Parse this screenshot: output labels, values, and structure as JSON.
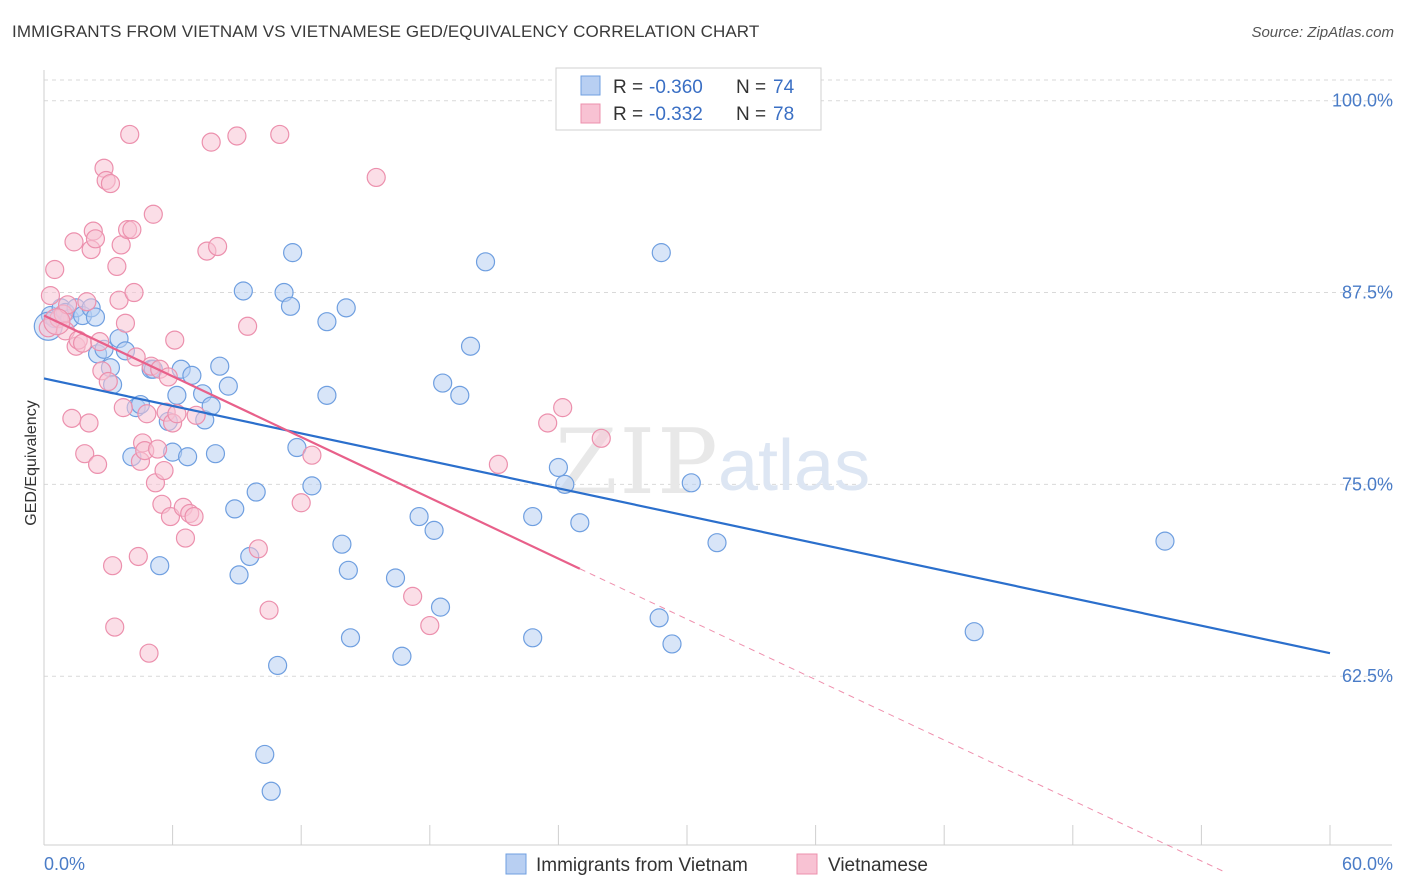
{
  "title": "IMMIGRANTS FROM VIETNAM VS VIETNAMESE GED/EQUIVALENCY CORRELATION CHART",
  "source": "Source: ZipAtlas.com",
  "watermark": {
    "zip": "ZIP",
    "atlas": "atlas"
  },
  "colors": {
    "blue_fill": "#b8cff2",
    "blue_stroke": "#6f9fe0",
    "blue_line": "#2b6fcc",
    "pink_fill": "#f8c2d3",
    "pink_stroke": "#ec90ad",
    "pink_line": "#e8608a",
    "grid": "#d9d9d9",
    "axis_text": "#4a7cc7"
  },
  "chart_data": {
    "type": "scatter",
    "title": "IMMIGRANTS FROM VIETNAM VS VIETNAMESE GED/EQUIVALENCY CORRELATION CHART",
    "xlabel": "",
    "ylabel": "GED/Equivalency",
    "xlim": [
      0,
      60
    ],
    "ylim": [
      51.5,
      102
    ],
    "x_tick_labels": [
      "0.0%",
      "60.0%"
    ],
    "y_ticks": [
      62.5,
      75.0,
      87.5,
      100.0
    ],
    "y_tick_labels": [
      "62.5%",
      "75.0%",
      "87.5%",
      "100.0%"
    ],
    "grid": "horizontal dashed",
    "legend": {
      "placement": "top-center",
      "rows": [
        {
          "r_label": "R = ",
          "r_value": "-0.360",
          "n_label": "N = ",
          "n_value": "74"
        },
        {
          "r_label": "R = ",
          "r_value": "-0.332",
          "n_label": "N = ",
          "n_value": "78"
        }
      ]
    },
    "series": [
      {
        "name": "Immigrants from Vietnam",
        "color": "blue",
        "trend": {
          "x0": 0,
          "y0": 81.9,
          "x1": 60,
          "y1": 64.0,
          "dashed_to": null
        },
        "points": [
          [
            0.3,
            86.0
          ],
          [
            0.5,
            85.8
          ],
          [
            0.8,
            86.5
          ],
          [
            1.0,
            86.2
          ],
          [
            1.2,
            85.8
          ],
          [
            1.5,
            86.5
          ],
          [
            1.8,
            86.0
          ],
          [
            2.2,
            86.5
          ],
          [
            2.4,
            85.9
          ],
          [
            2.5,
            83.5
          ],
          [
            2.8,
            83.8
          ],
          [
            3.1,
            82.6
          ],
          [
            3.2,
            81.5
          ],
          [
            3.5,
            84.5
          ],
          [
            3.8,
            83.7
          ],
          [
            4.1,
            76.8
          ],
          [
            4.3,
            80.0
          ],
          [
            4.5,
            80.2
          ],
          [
            5.0,
            82.5
          ],
          [
            5.1,
            82.5
          ],
          [
            5.4,
            69.7
          ],
          [
            5.8,
            79.1
          ],
          [
            6.0,
            77.1
          ],
          [
            6.2,
            80.8
          ],
          [
            6.4,
            82.5
          ],
          [
            6.7,
            76.8
          ],
          [
            6.9,
            82.1
          ],
          [
            7.4,
            80.9
          ],
          [
            7.5,
            79.2
          ],
          [
            7.8,
            80.1
          ],
          [
            8.0,
            77.0
          ],
          [
            8.2,
            82.7
          ],
          [
            8.6,
            81.4
          ],
          [
            8.9,
            73.4
          ],
          [
            9.1,
            69.1
          ],
          [
            9.3,
            87.6
          ],
          [
            9.6,
            70.3
          ],
          [
            9.9,
            74.5
          ],
          [
            10.3,
            57.4
          ],
          [
            10.6,
            55.0
          ],
          [
            10.9,
            63.2
          ],
          [
            11.2,
            87.5
          ],
          [
            11.5,
            86.6
          ],
          [
            11.6,
            90.1
          ],
          [
            11.8,
            77.4
          ],
          [
            12.5,
            74.9
          ],
          [
            13.2,
            85.6
          ],
          [
            13.2,
            80.8
          ],
          [
            13.9,
            71.1
          ],
          [
            14.1,
            86.5
          ],
          [
            14.2,
            69.4
          ],
          [
            14.3,
            65.0
          ],
          [
            16.4,
            68.9
          ],
          [
            16.7,
            63.8
          ],
          [
            17.5,
            72.9
          ],
          [
            18.2,
            72.0
          ],
          [
            18.5,
            67.0
          ],
          [
            18.6,
            81.6
          ],
          [
            19.4,
            80.8
          ],
          [
            19.9,
            84.0
          ],
          [
            20.6,
            89.5
          ],
          [
            22.8,
            72.9
          ],
          [
            22.8,
            65.0
          ],
          [
            24.0,
            76.1
          ],
          [
            24.3,
            75.0
          ],
          [
            25.0,
            72.5
          ],
          [
            26.3,
            100.5
          ],
          [
            28.7,
            66.3
          ],
          [
            28.8,
            90.1
          ],
          [
            29.3,
            64.6
          ],
          [
            30.2,
            75.1
          ],
          [
            31.4,
            71.2
          ],
          [
            43.4,
            65.4
          ],
          [
            52.3,
            71.3
          ]
        ]
      },
      {
        "name": "Vietnamese",
        "color": "pink",
        "trend": {
          "x0": 0,
          "y0": 86.0,
          "x1": 25,
          "y1": 69.5,
          "dashed_to": {
            "x": 55,
            "y": 49.8
          }
        },
        "points": [
          [
            0.2,
            85.2
          ],
          [
            0.3,
            87.3
          ],
          [
            0.5,
            89.0
          ],
          [
            0.7,
            85.8
          ],
          [
            0.9,
            86.1
          ],
          [
            1.0,
            85.0
          ],
          [
            1.1,
            86.7
          ],
          [
            1.3,
            79.3
          ],
          [
            1.4,
            90.8
          ],
          [
            1.5,
            84.0
          ],
          [
            1.6,
            84.4
          ],
          [
            1.8,
            84.2
          ],
          [
            1.9,
            77.0
          ],
          [
            2.0,
            86.9
          ],
          [
            2.1,
            79.0
          ],
          [
            2.2,
            90.3
          ],
          [
            2.3,
            91.5
          ],
          [
            2.4,
            91.0
          ],
          [
            2.5,
            76.3
          ],
          [
            2.6,
            84.3
          ],
          [
            2.7,
            82.4
          ],
          [
            2.8,
            95.6
          ],
          [
            2.9,
            94.8
          ],
          [
            3.0,
            81.7
          ],
          [
            3.1,
            94.6
          ],
          [
            3.2,
            69.7
          ],
          [
            3.3,
            65.7
          ],
          [
            3.4,
            89.2
          ],
          [
            3.5,
            87.0
          ],
          [
            3.6,
            90.6
          ],
          [
            3.7,
            80.0
          ],
          [
            3.8,
            85.5
          ],
          [
            3.9,
            91.6
          ],
          [
            4.0,
            97.8
          ],
          [
            4.1,
            91.6
          ],
          [
            4.2,
            87.5
          ],
          [
            4.3,
            83.3
          ],
          [
            4.4,
            70.3
          ],
          [
            4.5,
            76.5
          ],
          [
            4.6,
            77.7
          ],
          [
            4.7,
            77.2
          ],
          [
            4.8,
            79.6
          ],
          [
            4.9,
            64.0
          ],
          [
            5.0,
            82.7
          ],
          [
            5.1,
            92.6
          ],
          [
            5.2,
            75.1
          ],
          [
            5.3,
            77.3
          ],
          [
            5.4,
            82.5
          ],
          [
            5.5,
            73.7
          ],
          [
            5.6,
            75.9
          ],
          [
            5.7,
            79.7
          ],
          [
            5.8,
            82.0
          ],
          [
            5.9,
            72.9
          ],
          [
            6.0,
            79.0
          ],
          [
            6.1,
            84.4
          ],
          [
            6.2,
            79.6
          ],
          [
            6.5,
            73.5
          ],
          [
            6.6,
            71.5
          ],
          [
            6.8,
            73.1
          ],
          [
            7.0,
            72.9
          ],
          [
            7.1,
            79.5
          ],
          [
            7.6,
            90.2
          ],
          [
            7.8,
            97.3
          ],
          [
            8.1,
            90.5
          ],
          [
            9.0,
            97.7
          ],
          [
            9.5,
            85.3
          ],
          [
            10.0,
            70.8
          ],
          [
            10.5,
            66.8
          ],
          [
            11.0,
            97.8
          ],
          [
            12.0,
            73.8
          ],
          [
            12.5,
            76.9
          ],
          [
            15.5,
            95.0
          ],
          [
            17.2,
            67.7
          ],
          [
            18.0,
            65.8
          ],
          [
            21.2,
            76.3
          ],
          [
            23.5,
            79.0
          ],
          [
            24.2,
            80.0
          ],
          [
            26.0,
            78.0
          ]
        ]
      }
    ]
  },
  "legend_bottom": [
    {
      "label": "Immigrants from Vietnam"
    },
    {
      "label": "Vietnamese"
    }
  ]
}
